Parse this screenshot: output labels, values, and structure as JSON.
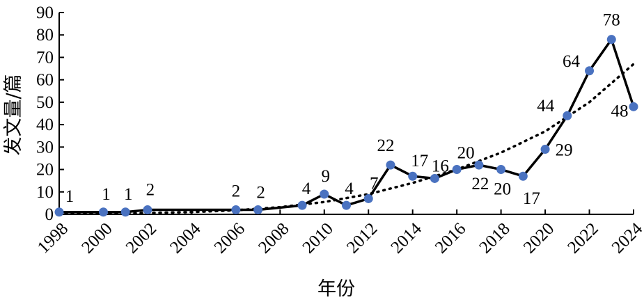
{
  "chart_data": {
    "type": "line",
    "title": "",
    "xlabel": "年份",
    "ylabel": "发文量/篇",
    "xlim": [
      1998,
      2024
    ],
    "ylim": [
      0,
      90
    ],
    "x_ticks": [
      "1998",
      "2000",
      "2002",
      "2004",
      "2006",
      "2008",
      "2010",
      "2012",
      "2014",
      "2016",
      "2018",
      "2020",
      "2022",
      "2024"
    ],
    "y_ticks": [
      "0",
      "10",
      "20",
      "30",
      "40",
      "50",
      "60",
      "70",
      "80",
      "90"
    ],
    "grid": false,
    "legend": "none",
    "series": [
      {
        "x": [
          1998,
          2000,
          2001,
          2002,
          2006,
          2007,
          2009,
          2010,
          2011,
          2012,
          2013,
          2014,
          2015,
          2016,
          2017,
          2018,
          2019,
          2020,
          2021,
          2022,
          2023,
          2024
        ],
        "values": [
          1,
          1,
          1,
          2,
          2,
          2,
          4,
          9,
          4,
          7,
          22,
          17,
          16,
          20,
          22,
          20,
          17,
          29,
          44,
          64,
          78,
          48
        ],
        "labels": [
          "1",
          "1",
          "1",
          "2",
          "2",
          "2",
          "4",
          "9",
          "4",
          "7",
          "22",
          "17",
          "16",
          "20",
          "22",
          "20",
          "17",
          "29",
          "44",
          "64",
          "78",
          "48"
        ],
        "line_color": "#000000",
        "marker_color": "#4a72c0"
      }
    ],
    "trendline": {
      "type": "exponential",
      "style": "dotted",
      "x": [
        1998,
        2000,
        2002,
        2004,
        2006,
        2008,
        2010,
        2012,
        2014,
        2016,
        2018,
        2020,
        2022,
        2024
      ],
      "values": [
        0.2,
        0.3,
        0.6,
        1.0,
        1.8,
        3.2,
        5.5,
        9.0,
        14.0,
        20.0,
        27.5,
        37.0,
        50.0,
        67.0
      ]
    }
  }
}
